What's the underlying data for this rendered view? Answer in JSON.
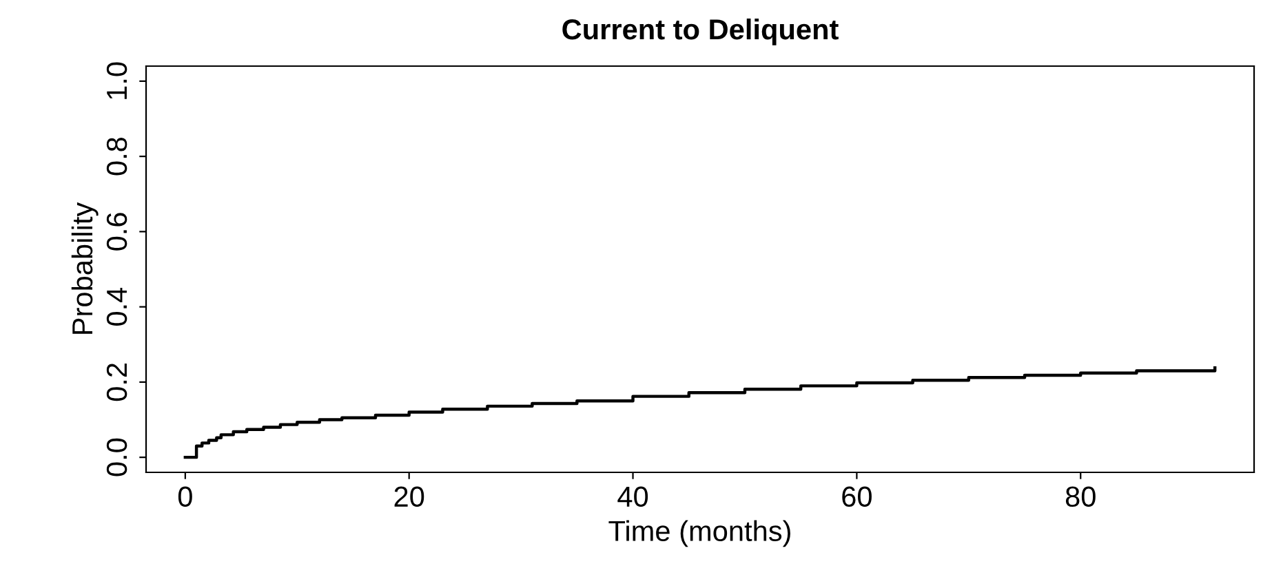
{
  "chart_data": {
    "type": "step",
    "title": "Current to Deliquent",
    "xlabel": "Time (months)",
    "ylabel": "Probability",
    "x": [
      0,
      1,
      1.5,
      2.1,
      2.8,
      3.2,
      4.3,
      5.5,
      7,
      8.5,
      10,
      12,
      14,
      17,
      20,
      23,
      27,
      31,
      35,
      40,
      45,
      50,
      55,
      60,
      65,
      70,
      75,
      80,
      85,
      92
    ],
    "values": [
      0,
      0.03,
      0.038,
      0.045,
      0.052,
      0.06,
      0.068,
      0.074,
      0.08,
      0.087,
      0.093,
      0.1,
      0.105,
      0.112,
      0.12,
      0.128,
      0.136,
      0.143,
      0.15,
      0.162,
      0.172,
      0.181,
      0.19,
      0.198,
      0.205,
      0.212,
      0.218,
      0.224,
      0.23,
      0.238
    ],
    "color": "#000000",
    "xlim": [
      -3.5,
      95.5
    ],
    "ylim": [
      -0.04,
      1.04
    ],
    "xticks": [
      0,
      20,
      40,
      60,
      80
    ],
    "yticks": [
      {
        "value": 0,
        "label": "0.0"
      },
      0.2,
      0.4,
      0.6,
      0.8,
      {
        "value": 1,
        "label": "1.0"
      }
    ],
    "grid": false,
    "legend": false
  }
}
